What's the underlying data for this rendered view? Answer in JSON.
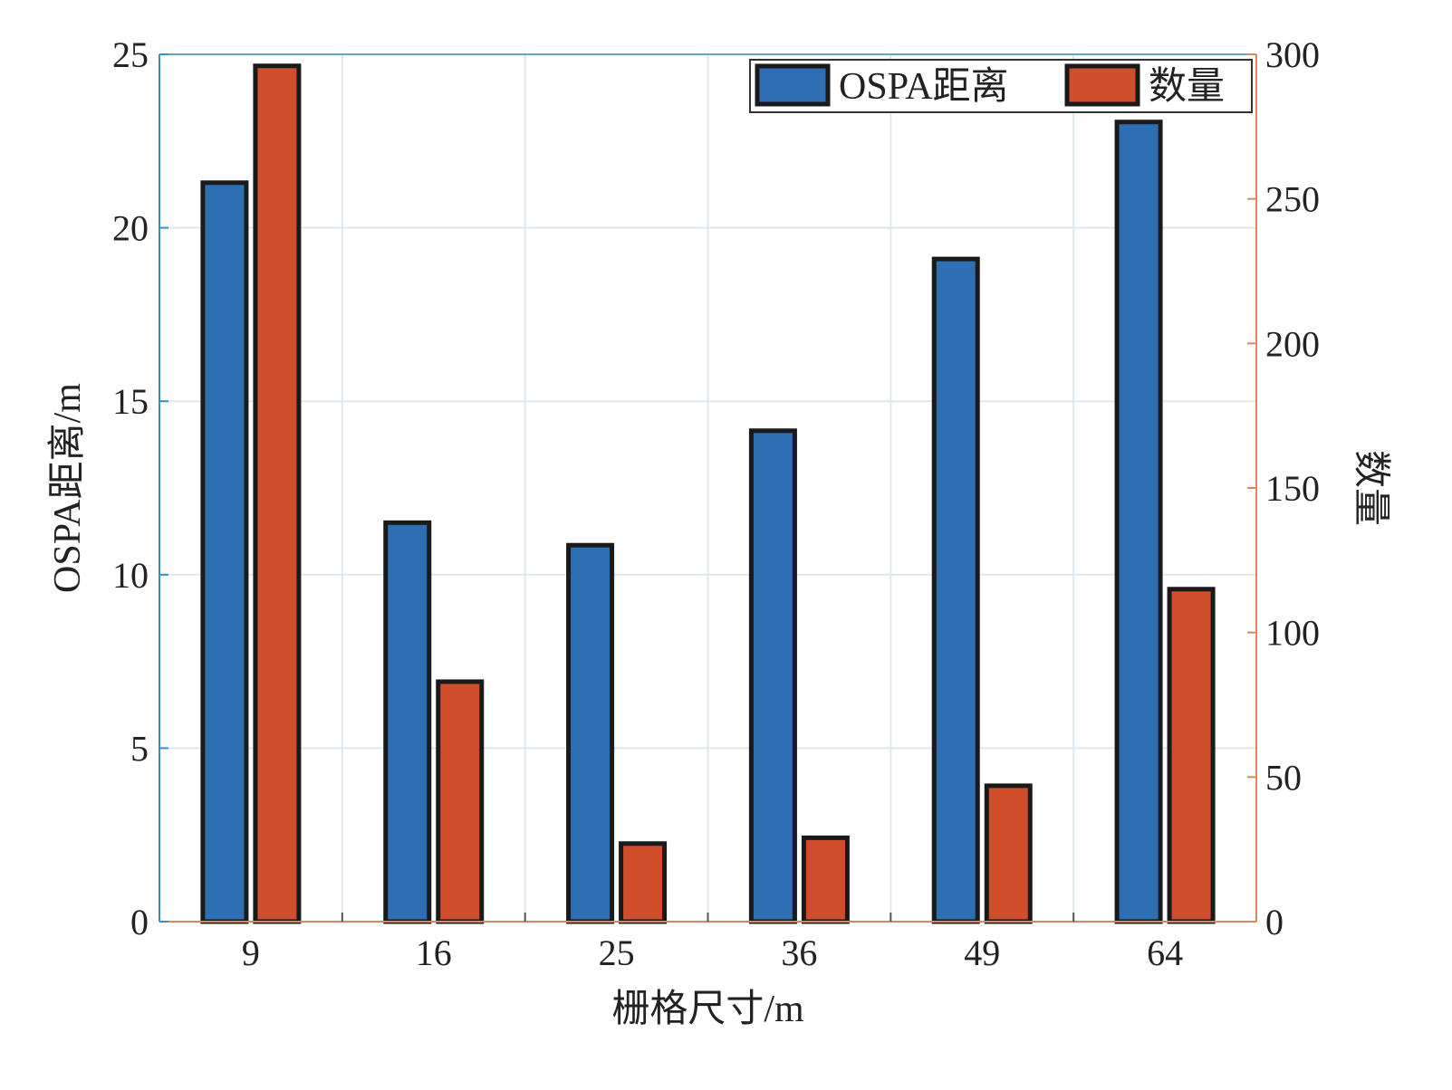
{
  "chart_data": {
    "type": "bar",
    "categories": [
      "9",
      "16",
      "25",
      "36",
      "49",
      "64"
    ],
    "series": [
      {
        "name": "OSPA距离",
        "axis": "left",
        "values": [
          21.3,
          11.5,
          10.85,
          14.15,
          19.1,
          23.05
        ]
      },
      {
        "name": "数量",
        "axis": "right",
        "values": [
          296,
          83,
          27,
          29,
          47,
          115
        ]
      }
    ],
    "xlabel": "栅格尺寸/m",
    "ylabel_left": "OSPA距离/m",
    "ylabel_right": "数量",
    "ylim_left": [
      0,
      25
    ],
    "ylim_right": [
      0,
      300
    ],
    "yticks_left": [
      "0",
      "5",
      "10",
      "15",
      "20",
      "25"
    ],
    "yticks_right": [
      "0",
      "50",
      "100",
      "150",
      "200",
      "250",
      "300"
    ],
    "grid": true,
    "legend_position": "top-right",
    "colors": {
      "left_series": "#2e6fb4",
      "right_series": "#cf4f2a",
      "left_axis": "#3a8fc4",
      "right_axis": "#d9885e",
      "grid": "#dde8ee",
      "bar_edge": "#1a1a1a"
    }
  }
}
